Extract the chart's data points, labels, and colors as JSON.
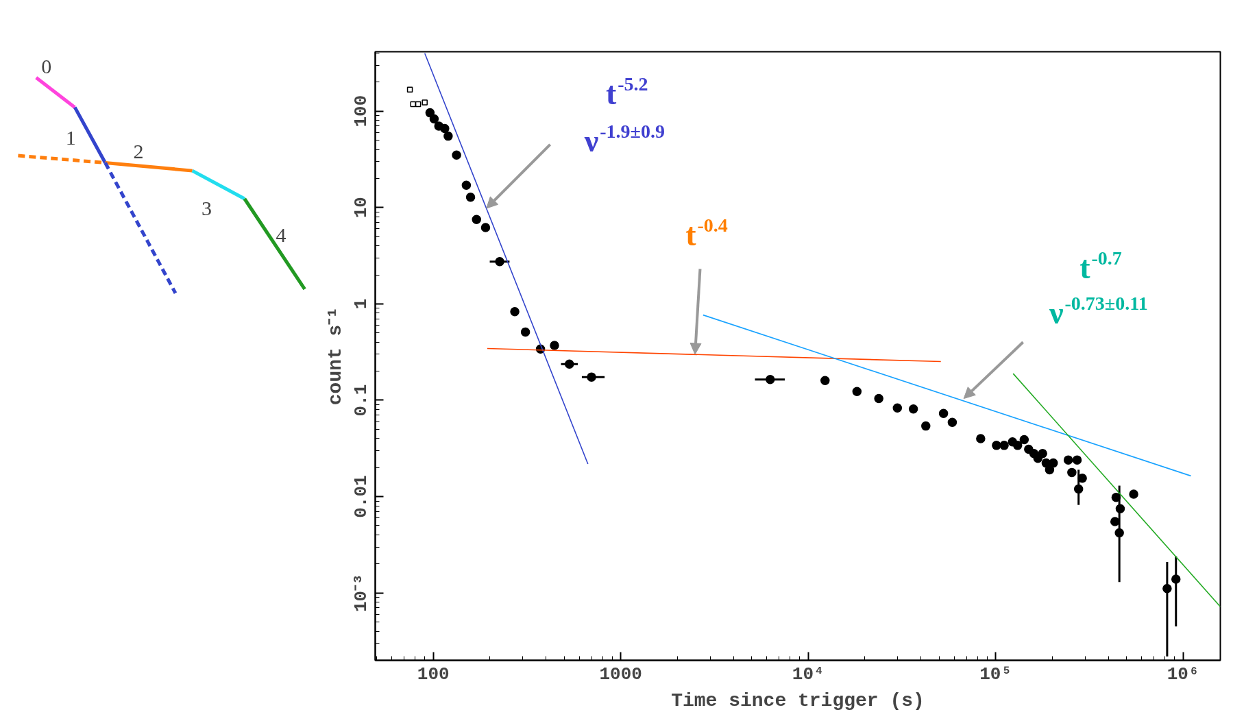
{
  "chart_data": [
    {
      "type": "other",
      "annotations": [
        "0",
        "1",
        "2",
        "3",
        "4"
      ]
    },
    {
      "type": "scatter",
      "log": "xy",
      "grid": false,
      "xlabel": "Time since trigger (s)",
      "ylabel": "count s⁻¹",
      "xlim": [
        49,
        1580000
      ],
      "ylim": [
        0.0002,
        413
      ],
      "xticks": [
        100,
        1000,
        {
          "value": 10000,
          "label": "10⁴"
        },
        {
          "value": 100000,
          "label": "10⁵"
        },
        {
          "value": 1000000,
          "label": "10⁶"
        }
      ],
      "yticks": [
        {
          "value": 0.001,
          "label": "10⁻³"
        },
        0.01,
        0.1,
        1,
        10,
        100
      ],
      "series": [
        {
          "color": "#000000",
          "marker": "square",
          "x": [
            75,
            78,
            83,
            90
          ],
          "values": [
            167,
            118,
            118,
            123
          ]
        },
        {
          "color": "#000000",
          "marker": "circle",
          "x": [
            96,
            101,
            107,
            115,
            120,
            133,
            150,
            158,
            170,
            190,
            226,
            272,
            310,
            373,
            443,
            532,
            698,
            6270,
            12300,
            18200,
            23800,
            29900,
            36400,
            42400,
            52700,
            58700,
            83200,
            101000,
            111000,
            123000,
            131000,
            142000,
            150000,
            160000,
            168000,
            178000,
            186000,
            194000,
            203000,
            244000,
            255000,
            272000,
            277000,
            290000,
            439000,
            433000,
            457000,
            462000,
            545000,
            822000,
            916000
          ],
          "values": [
            96,
            83,
            70,
            66,
            55,
            35,
            17,
            12.8,
            7.5,
            6.2,
            2.74,
            0.83,
            0.51,
            0.34,
            0.37,
            0.237,
            0.174,
            0.164,
            0.16,
            0.123,
            0.104,
            0.083,
            0.081,
            0.054,
            0.073,
            0.059,
            0.04,
            0.034,
            0.034,
            0.037,
            0.034,
            0.039,
            0.031,
            0.028,
            0.025,
            0.028,
            0.0223,
            0.019,
            0.0223,
            0.024,
            0.0178,
            0.024,
            0.012,
            0.0155,
            0.0098,
            0.0055,
            0.0042,
            0.0075,
            0.0106,
            0.00111,
            0.00139
          ],
          "errors": [
            null,
            null,
            null,
            null,
            null,
            null,
            null,
            null,
            null,
            null,
            null,
            null,
            null,
            null,
            null,
            null,
            null,
            null,
            null,
            null,
            null,
            null,
            null,
            null,
            null,
            null,
            null,
            null,
            null,
            null,
            null,
            null,
            null,
            null,
            null,
            null,
            null,
            null,
            null,
            null,
            null,
            null,
            [
              0.0082,
              0.019
            ],
            null,
            null,
            null,
            [
              0.0013,
              0.013
            ],
            null,
            null,
            [
              0.00022,
              0.0021
            ],
            [
              0.00045,
              0.0024
            ]
          ],
          "xerrors": [
            null,
            null,
            null,
            null,
            null,
            null,
            null,
            null,
            null,
            null,
            [
              200,
              255
            ],
            null,
            null,
            null,
            null,
            [
              480,
              590
            ],
            [
              620,
              820
            ],
            [
              5200,
              7500
            ],
            null,
            null,
            null,
            null,
            null,
            null,
            null,
            null,
            null,
            null,
            null,
            null,
            null,
            null,
            null,
            null,
            null,
            null,
            null,
            null,
            null,
            null,
            null,
            null,
            null,
            null,
            null,
            null,
            null,
            null,
            null,
            null,
            null
          ]
        },
        {
          "type": "line",
          "color": "#3344cc",
          "x": [
            90,
            668
          ],
          "values": [
            398,
            0.0218
          ]
        },
        {
          "type": "line",
          "color": "#ff4400",
          "x": [
            194,
            51000
          ],
          "values": [
            0.344,
            0.252
          ]
        },
        {
          "type": "line",
          "color": "#1aa3ff",
          "x": [
            2750,
            1100000
          ],
          "values": [
            0.766,
            0.0164
          ]
        },
        {
          "type": "line",
          "color": "#22aa22",
          "x": [
            124000,
            1580000
          ],
          "values": [
            0.189,
            0.00072
          ]
        }
      ],
      "annotations": [
        "t$^{-5.2}$",
        {
          "text": "ν$^{-1.9±0.9}$",
          "x": 192,
          "y": 9.8
        },
        {
          "text": "t$^{-0.4}$",
          "x": 2490,
          "y": 0.3
        },
        "t$^{-0.7}$",
        {
          "text": "ν$^{-0.73±0.11}$",
          "x": 67600,
          "y": 0.104
        }
      ]
    }
  ]
}
